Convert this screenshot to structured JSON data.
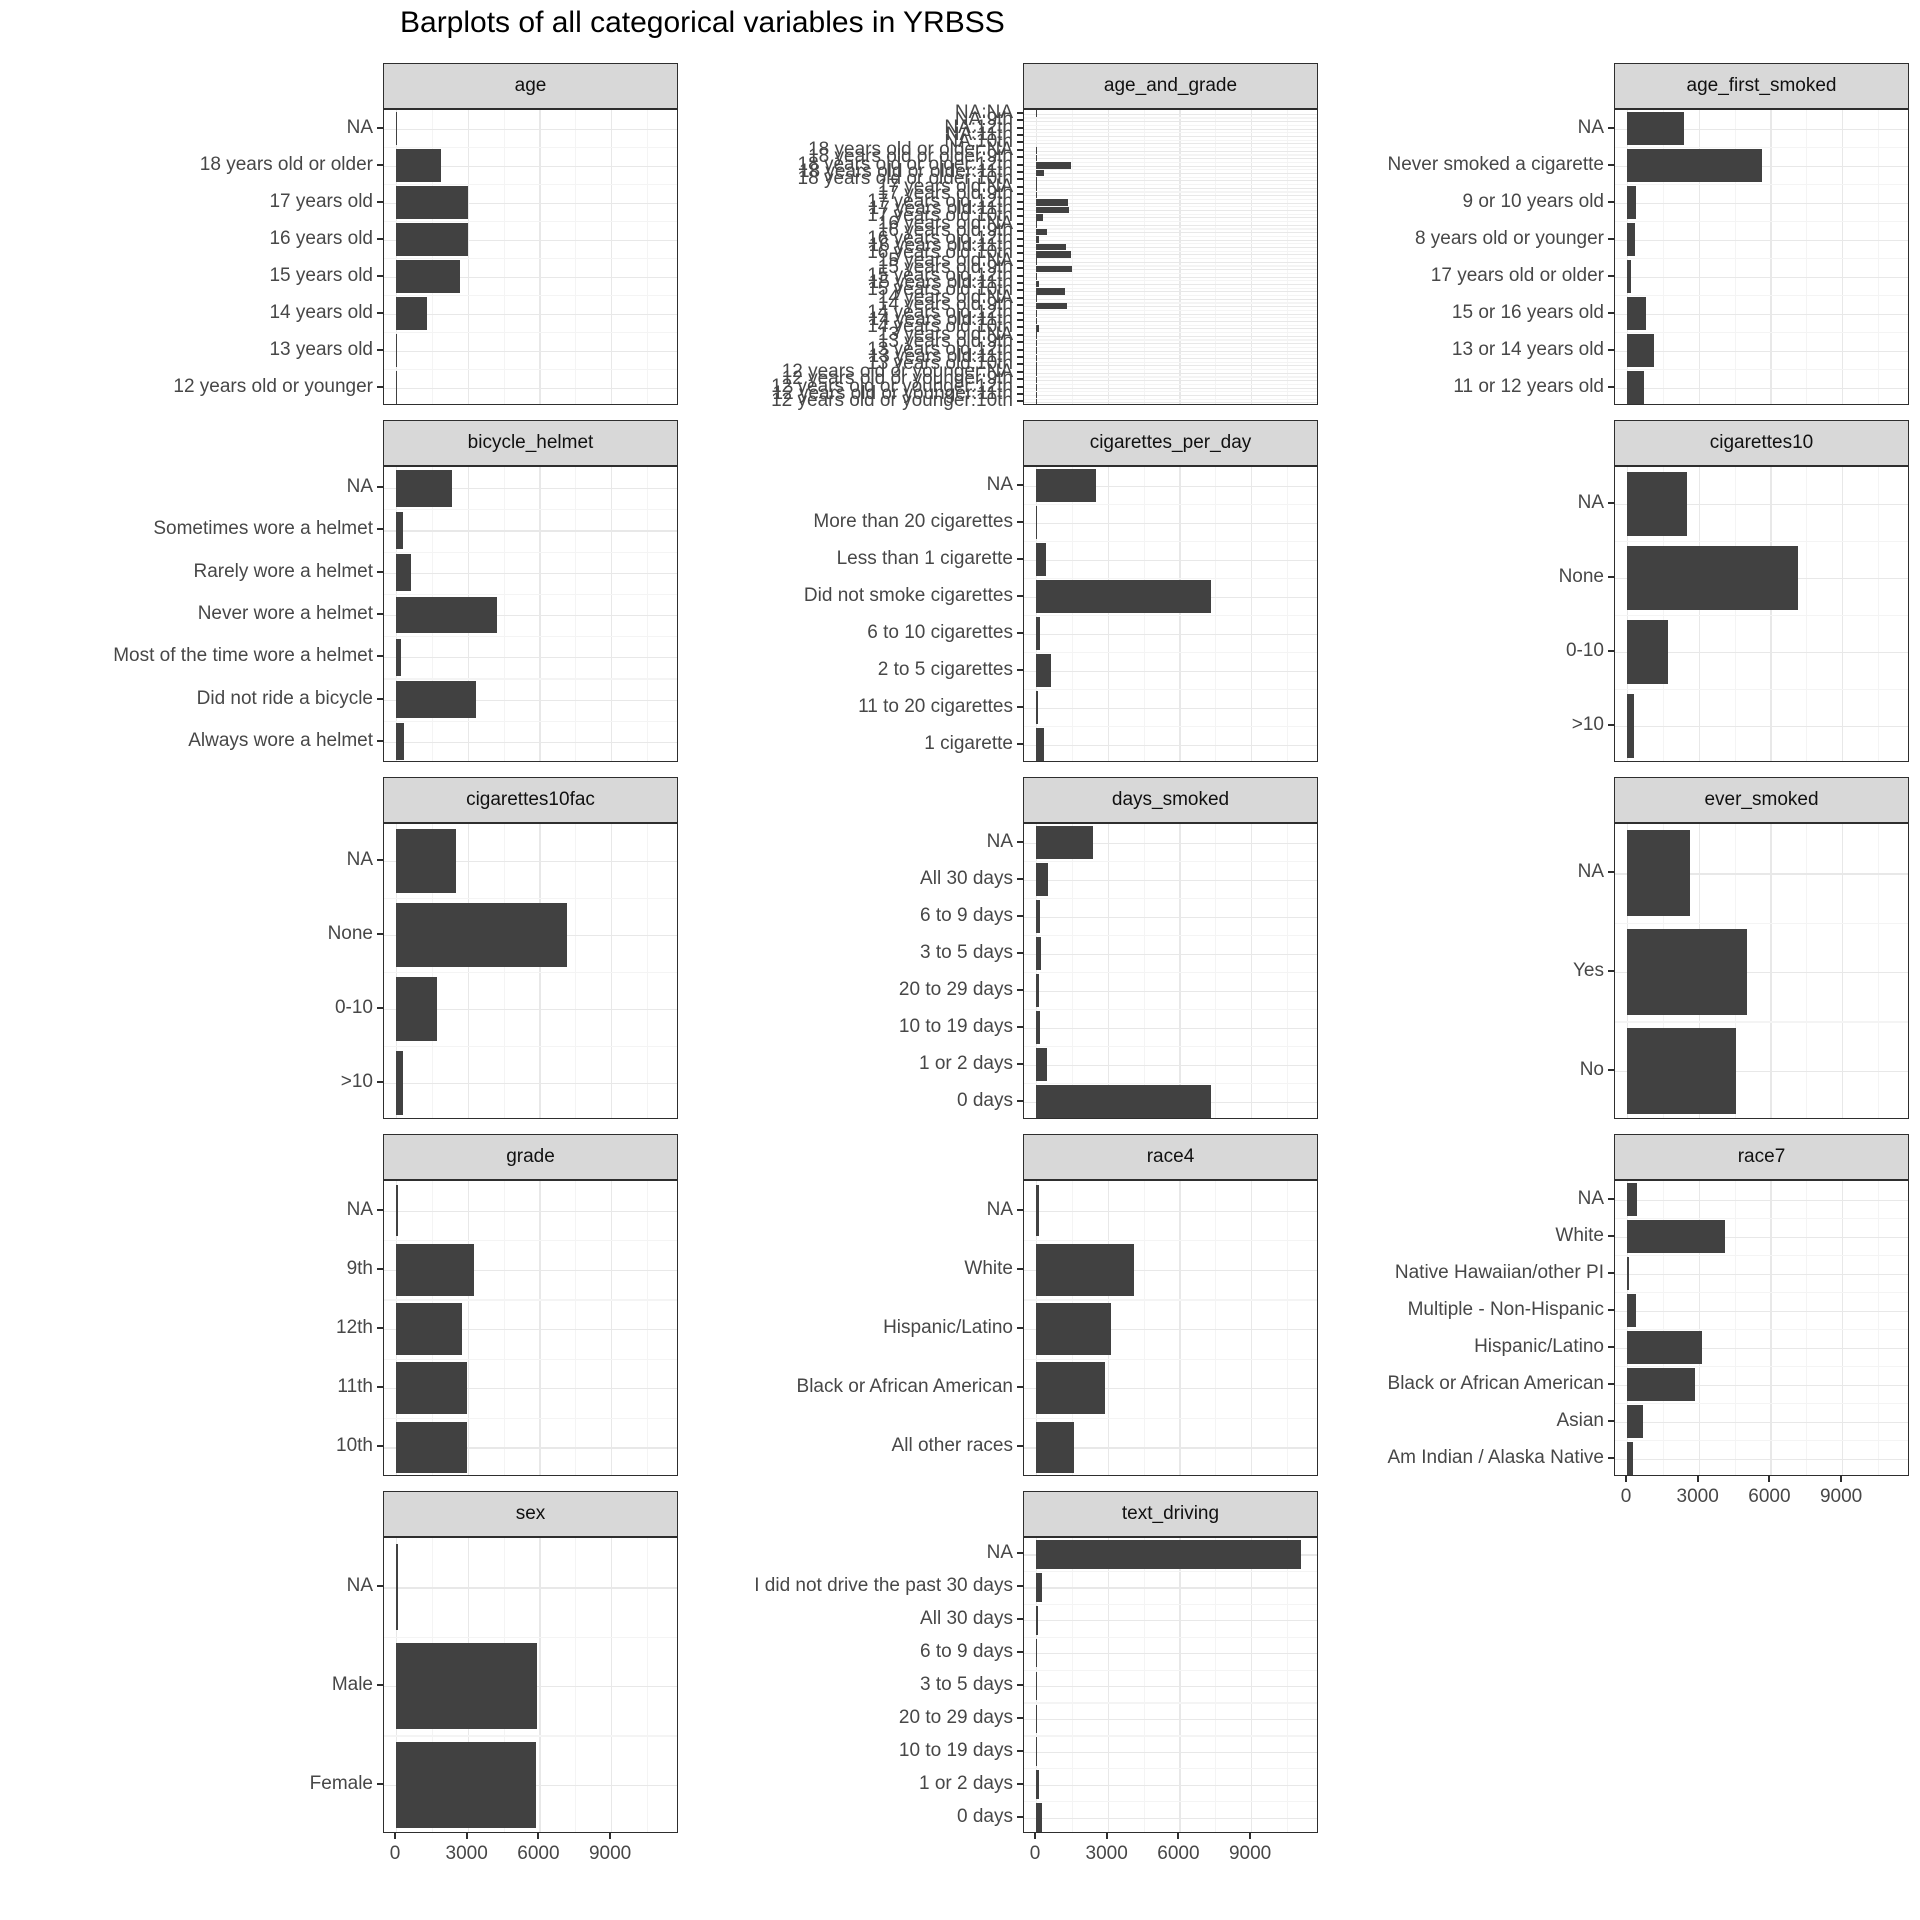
{
  "title": "Barplots of all categorical variables in YRBSS",
  "colors": {
    "bar": "#414141",
    "strip_background": "#d8d8d8",
    "panel_border": "#2e2e2e",
    "grid_major": "#e8e8e8",
    "grid_minor": "#f4f4f4",
    "axis_text": "#474747",
    "title_text": "#000000"
  },
  "axis": {
    "x_ticks": [
      0,
      3000,
      6000,
      9000
    ],
    "x_minor": [
      1500,
      4500,
      7500,
      10500
    ],
    "xlim": [
      0,
      11870
    ]
  },
  "chart_data": [
    {
      "facet": "age",
      "type": "bar",
      "orientation": "horizontal",
      "categories": [
        "NA",
        "18 years old or older",
        "17 years old",
        "16 years old",
        "15 years old",
        "14 years old",
        "13 years old",
        "12 years old or younger"
      ],
      "values": [
        60,
        1900,
        3000,
        3030,
        2680,
        1290,
        50,
        50
      ]
    },
    {
      "facet": "age_and_grade",
      "type": "bar",
      "orientation": "horizontal",
      "categories": [
        "NA:NA",
        "NA:9th",
        "NA:12th",
        "NA:11th",
        "NA:10th",
        "18 years old or older:NA",
        "18 years old or older:9th",
        "18 years old or older:12th",
        "18 years old or older:11th",
        "18 years old or older:10th",
        "17 years old:NA",
        "17 years old:9th",
        "17 years old:12th",
        "17 years old:11th",
        "17 years old:10th",
        "16 years old:NA",
        "16 years old:9th",
        "16 years old:12th",
        "16 years old:11th",
        "16 years old:10th",
        "15 years old:NA",
        "15 years old:9th",
        "15 years old:12th",
        "15 years old:11th",
        "15 years old:10th",
        "14 years old:NA",
        "14 years old:9th",
        "14 years old:12th",
        "14 years old:11th",
        "14 years old:10th",
        "13 years old:NA",
        "13 years old:9th",
        "13 years old:12th",
        "13 years old:11th",
        "13 years old:10th",
        "12 years old or younger:NA",
        "12 years old or younger:9th",
        "12 years old or younger:12th",
        "12 years old or younger:11th",
        "12 years old or younger:10th"
      ],
      "values": [
        60,
        0,
        0,
        0,
        0,
        30,
        40,
        1450,
        330,
        60,
        30,
        60,
        1350,
        1400,
        290,
        30,
        450,
        120,
        1250,
        1450,
        30,
        1500,
        20,
        120,
        1200,
        20,
        1300,
        10,
        15,
        120,
        10,
        40,
        5,
        5,
        10,
        10,
        30,
        5,
        5,
        10
      ]
    },
    {
      "facet": "age_first_smoked",
      "type": "bar",
      "orientation": "horizontal",
      "categories": [
        "NA",
        "Never smoked a cigarette",
        "9 or 10 years old",
        "8 years old or younger",
        "17 years old or older",
        "15 or 16 years old",
        "13 or 14 years old",
        "11 or 12 years old"
      ],
      "values": [
        2400,
        5650,
        360,
        340,
        150,
        800,
        1150,
        700
      ]
    },
    {
      "facet": "bicycle_helmet",
      "type": "bar",
      "orientation": "horizontal",
      "categories": [
        "NA",
        "Sometimes wore a helmet",
        "Rarely wore a helmet",
        "Never wore a helmet",
        "Most of the time wore a helmet",
        "Did not ride a bicycle",
        "Always wore a helmet"
      ],
      "values": [
        2340,
        310,
        630,
        4230,
        220,
        3330,
        320
      ]
    },
    {
      "facet": "cigarettes_per_day",
      "type": "bar",
      "orientation": "horizontal",
      "categories": [
        "NA",
        "More than 20 cigarettes",
        "Less than 1 cigarette",
        "Did not smoke cigarettes",
        "6 to 10 cigarettes",
        "2 to 5 cigarettes",
        "11 to 20 cigarettes",
        "1 cigarette"
      ],
      "values": [
        2500,
        40,
        400,
        7330,
        180,
        630,
        90,
        350
      ]
    },
    {
      "facet": "cigarettes10",
      "type": "bar",
      "orientation": "horizontal",
      "categories": [
        "NA",
        "None",
        "0-10",
        ">10"
      ],
      "values": [
        2500,
        7160,
        1730,
        280
      ]
    },
    {
      "facet": "cigarettes10fac",
      "type": "bar",
      "orientation": "horizontal",
      "categories": [
        "NA",
        "None",
        "0-10",
        ">10"
      ],
      "values": [
        2500,
        7160,
        1730,
        280
      ]
    },
    {
      "facet": "days_smoked",
      "type": "bar",
      "orientation": "horizontal",
      "categories": [
        "NA",
        "All 30 days",
        "6 to 9 days",
        "3 to 5 days",
        "20 to 29 days",
        "10 to 19 days",
        "1 or 2 days",
        "0 days"
      ],
      "values": [
        2400,
        500,
        180,
        200,
        140,
        160,
        460,
        7330
      ]
    },
    {
      "facet": "ever_smoked",
      "type": "bar",
      "orientation": "horizontal",
      "categories": [
        "NA",
        "Yes",
        "No"
      ],
      "values": [
        2650,
        5000,
        4550
      ]
    },
    {
      "facet": "grade",
      "type": "bar",
      "orientation": "horizontal",
      "categories": [
        "NA",
        "9th",
        "12th",
        "11th",
        "10th"
      ],
      "values": [
        80,
        3280,
        2760,
        2950,
        2990
      ]
    },
    {
      "facet": "race4",
      "type": "bar",
      "orientation": "horizontal",
      "categories": [
        "NA",
        "White",
        "Hispanic/Latino",
        "Black or African American",
        "All other races"
      ],
      "values": [
        130,
        4120,
        3140,
        2870,
        1600
      ]
    },
    {
      "facet": "race7",
      "type": "bar",
      "orientation": "horizontal",
      "categories": [
        "NA",
        "White",
        "Native Hawaiian/other PI",
        "Multiple - Non-Hispanic",
        "Hispanic/Latino",
        "Black or African American",
        "Asian",
        "Am Indian / Alaska Native"
      ],
      "values": [
        410,
        4100,
        100,
        370,
        3120,
        2860,
        680,
        250
      ]
    },
    {
      "facet": "sex",
      "type": "bar",
      "orientation": "horizontal",
      "categories": [
        "NA",
        "Male",
        "Female"
      ],
      "values": [
        100,
        5900,
        5850
      ]
    },
    {
      "facet": "text_driving",
      "type": "bar",
      "orientation": "horizontal",
      "categories": [
        "NA",
        "I did not drive the past 30 days",
        "All 30 days",
        "6 to 9 days",
        "3 to 5 days",
        "20 to 29 days",
        "10 to 19 days",
        "1 or 2 days",
        "0 days"
      ],
      "values": [
        11100,
        270,
        90,
        40,
        50,
        50,
        60,
        110,
        260
      ]
    }
  ]
}
